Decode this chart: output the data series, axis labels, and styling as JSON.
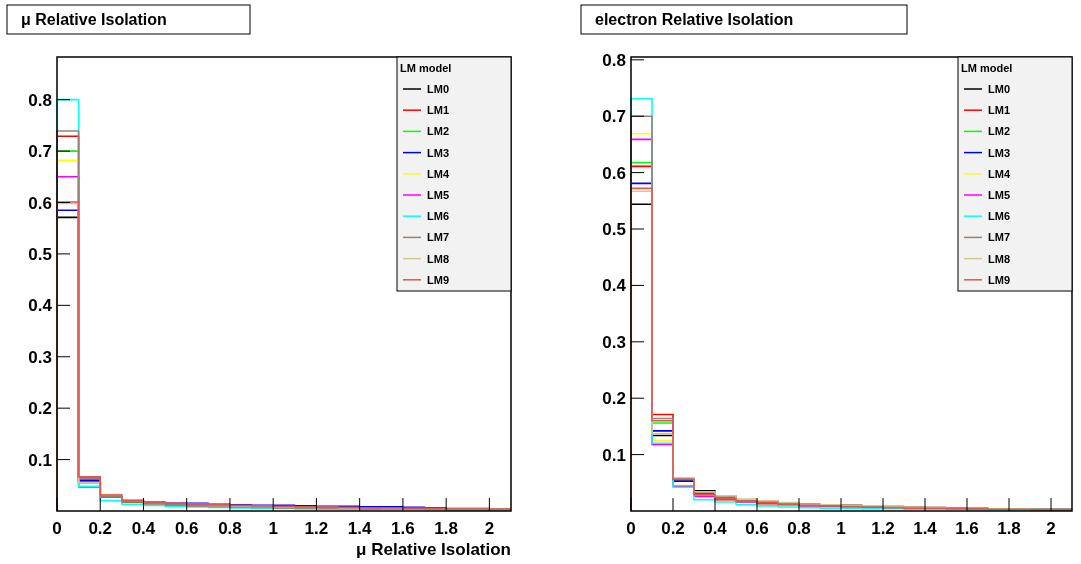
{
  "chart_data": [
    {
      "type": "histogram",
      "title": "μ Relative Isolation",
      "xlabel": "μ Relative Isolation",
      "legend_title": "LM model",
      "legend": "top right",
      "grid": false,
      "bins": [
        0,
        0.1,
        0.2,
        0.3,
        0.4,
        0.5,
        0.6,
        0.7,
        0.8,
        0.9,
        1,
        1.1,
        1.2,
        1.3,
        1.4,
        1.5,
        1.6,
        1.7,
        1.8,
        1.9,
        2,
        2.1
      ],
      "xlim": [
        0,
        2.1
      ],
      "xticks": [
        0,
        0.2,
        0.4,
        0.6,
        0.8,
        1,
        1.2,
        1.4,
        1.6,
        1.8,
        2
      ],
      "ylim": [
        0,
        0.883
      ],
      "yticks": [
        0.1,
        0.2,
        0.3,
        0.4,
        0.5,
        0.6,
        0.7,
        0.8
      ],
      "series": [
        {
          "name": "LM0",
          "color": "#000000",
          "values": [
            0.571,
            0.057,
            0.028,
            0.02,
            0.017,
            0.015,
            0.013,
            0.011,
            0.01,
            0.009,
            0.008,
            0.008,
            0.007,
            0.007,
            0.006,
            0.006,
            0.005,
            0.005,
            0.004,
            0.004,
            0.004
          ]
        },
        {
          "name": "LM1",
          "color": "#ff0000",
          "values": [
            0.729,
            0.066,
            0.027,
            0.017,
            0.014,
            0.012,
            0.01,
            0.009,
            0.008,
            0.007,
            0.006,
            0.006,
            0.005,
            0.005,
            0.005,
            0.004,
            0.004,
            0.004,
            0.003,
            0.003,
            0.003
          ]
        },
        {
          "name": "LM2",
          "color": "#00ff00",
          "values": [
            0.7,
            0.054,
            0.027,
            0.018,
            0.015,
            0.012,
            0.011,
            0.009,
            0.008,
            0.007,
            0.007,
            0.006,
            0.006,
            0.005,
            0.005,
            0.004,
            0.004,
            0.004,
            0.003,
            0.003,
            0.003
          ]
        },
        {
          "name": "LM3",
          "color": "#0000ff",
          "values": [
            0.585,
            0.06,
            0.027,
            0.02,
            0.017,
            0.016,
            0.015,
            0.013,
            0.012,
            0.011,
            0.011,
            0.01,
            0.009,
            0.009,
            0.008,
            0.008,
            0.007,
            0.006,
            0.005,
            0.005,
            0.004
          ]
        },
        {
          "name": "LM4",
          "color": "#ffff00",
          "values": [
            0.682,
            0.055,
            0.027,
            0.019,
            0.015,
            0.013,
            0.012,
            0.01,
            0.009,
            0.008,
            0.007,
            0.007,
            0.006,
            0.005,
            0.005,
            0.005,
            0.004,
            0.004,
            0.003,
            0.003,
            0.003
          ]
        },
        {
          "name": "LM5",
          "color": "#ff00ff",
          "values": [
            0.65,
            0.047,
            0.027,
            0.02,
            0.017,
            0.015,
            0.013,
            0.012,
            0.01,
            0.009,
            0.008,
            0.008,
            0.007,
            0.006,
            0.006,
            0.005,
            0.005,
            0.004,
            0.004,
            0.004,
            0.003
          ]
        },
        {
          "name": "LM6",
          "color": "#00ffff",
          "values": [
            0.8,
            0.048,
            0.02,
            0.013,
            0.011,
            0.009,
            0.008,
            0.007,
            0.006,
            0.005,
            0.005,
            0.004,
            0.004,
            0.004,
            0.003,
            0.003,
            0.003,
            0.003,
            0.002,
            0.002,
            0.002
          ]
        },
        {
          "name": "LM7",
          "color": "#9c7f73",
          "values": [
            0.739,
            0.063,
            0.028,
            0.018,
            0.014,
            0.012,
            0.01,
            0.009,
            0.008,
            0.007,
            0.006,
            0.006,
            0.005,
            0.005,
            0.004,
            0.004,
            0.004,
            0.003,
            0.003,
            0.003,
            0.003
          ]
        },
        {
          "name": "LM8",
          "color": "#d4c98a",
          "values": [
            0.598,
            0.056,
            0.032,
            0.021,
            0.017,
            0.015,
            0.013,
            0.011,
            0.01,
            0.009,
            0.008,
            0.008,
            0.007,
            0.006,
            0.006,
            0.005,
            0.005,
            0.005,
            0.004,
            0.004,
            0.004
          ]
        },
        {
          "name": "LM9",
          "color": "#dd5555",
          "values": [
            0.601,
            0.066,
            0.031,
            0.021,
            0.017,
            0.015,
            0.013,
            0.012,
            0.011,
            0.01,
            0.009,
            0.008,
            0.007,
            0.007,
            0.006,
            0.006,
            0.005,
            0.005,
            0.004,
            0.004,
            0.004
          ]
        }
      ]
    },
    {
      "type": "histogram",
      "title": "electron Relative Isolation",
      "legend_title": "LM model",
      "legend": "top right",
      "grid": false,
      "bins": [
        0,
        0.1,
        0.2,
        0.3,
        0.4,
        0.5,
        0.6,
        0.7,
        0.8,
        0.9,
        1,
        1.1,
        1.2,
        1.3,
        1.4,
        1.5,
        1.6,
        1.7,
        1.8,
        1.9,
        2,
        2.1
      ],
      "xlim": [
        0,
        2.1
      ],
      "xticks": [
        0,
        0.2,
        0.4,
        0.6,
        0.8,
        1,
        1.2,
        1.4,
        1.6,
        1.8,
        2
      ],
      "ylim": [
        0,
        0.805
      ],
      "yticks": [
        0.1,
        0.2,
        0.3,
        0.4,
        0.5,
        0.6,
        0.7,
        0.8
      ],
      "series": [
        {
          "name": "LM0",
          "color": "#000000",
          "values": [
            0.544,
            0.134,
            0.055,
            0.036,
            0.026,
            0.02,
            0.017,
            0.014,
            0.012,
            0.011,
            0.01,
            0.009,
            0.008,
            0.007,
            0.006,
            0.005,
            0.005,
            0.004,
            0.004,
            0.003,
            0.003
          ]
        },
        {
          "name": "LM1",
          "color": "#ff0000",
          "values": [
            0.611,
            0.171,
            0.053,
            0.031,
            0.023,
            0.018,
            0.014,
            0.012,
            0.01,
            0.009,
            0.008,
            0.007,
            0.006,
            0.005,
            0.005,
            0.004,
            0.004,
            0.003,
            0.003,
            0.003,
            0.003
          ]
        },
        {
          "name": "LM2",
          "color": "#00ff00",
          "values": [
            0.618,
            0.156,
            0.053,
            0.031,
            0.023,
            0.018,
            0.014,
            0.012,
            0.01,
            0.009,
            0.008,
            0.007,
            0.006,
            0.005,
            0.005,
            0.004,
            0.004,
            0.003,
            0.003,
            0.003,
            0.003
          ]
        },
        {
          "name": "LM3",
          "color": "#0000ff",
          "values": [
            0.581,
            0.142,
            0.053,
            0.03,
            0.023,
            0.018,
            0.015,
            0.012,
            0.011,
            0.01,
            0.009,
            0.008,
            0.007,
            0.006,
            0.005,
            0.005,
            0.004,
            0.004,
            0.003,
            0.003,
            0.003
          ]
        },
        {
          "name": "LM4",
          "color": "#ffff00",
          "values": [
            0.669,
            0.125,
            0.045,
            0.026,
            0.019,
            0.015,
            0.012,
            0.01,
            0.009,
            0.008,
            0.007,
            0.006,
            0.005,
            0.005,
            0.004,
            0.004,
            0.003,
            0.003,
            0.003,
            0.002,
            0.002
          ]
        },
        {
          "name": "LM5",
          "color": "#ff00ff",
          "values": [
            0.659,
            0.118,
            0.044,
            0.026,
            0.02,
            0.016,
            0.013,
            0.011,
            0.009,
            0.008,
            0.007,
            0.006,
            0.006,
            0.005,
            0.004,
            0.004,
            0.003,
            0.003,
            0.003,
            0.002,
            0.002
          ]
        },
        {
          "name": "LM6",
          "color": "#00ffff",
          "values": [
            0.731,
            0.12,
            0.042,
            0.02,
            0.016,
            0.011,
            0.009,
            0.007,
            0.006,
            0.005,
            0.005,
            0.004,
            0.004,
            0.003,
            0.003,
            0.003,
            0.002,
            0.002,
            0.002,
            0.002,
            0.002
          ]
        },
        {
          "name": "LM7",
          "color": "#9c7f73",
          "values": [
            0.7,
            0.164,
            0.058,
            0.033,
            0.025,
            0.019,
            0.016,
            0.013,
            0.011,
            0.01,
            0.009,
            0.008,
            0.007,
            0.006,
            0.005,
            0.005,
            0.004,
            0.004,
            0.003,
            0.003,
            0.003
          ]
        },
        {
          "name": "LM8",
          "color": "#d4c98a",
          "values": [
            0.567,
            0.137,
            0.059,
            0.034,
            0.027,
            0.021,
            0.018,
            0.015,
            0.012,
            0.011,
            0.01,
            0.009,
            0.008,
            0.007,
            0.006,
            0.005,
            0.005,
            0.004,
            0.004,
            0.003,
            0.003
          ]
        },
        {
          "name": "LM9",
          "color": "#dd5555",
          "values": [
            0.572,
            0.16,
            0.056,
            0.029,
            0.022,
            0.017,
            0.015,
            0.012,
            0.01,
            0.009,
            0.008,
            0.007,
            0.006,
            0.005,
            0.005,
            0.004,
            0.004,
            0.003,
            0.003,
            0.002,
            0.002
          ]
        }
      ]
    }
  ]
}
